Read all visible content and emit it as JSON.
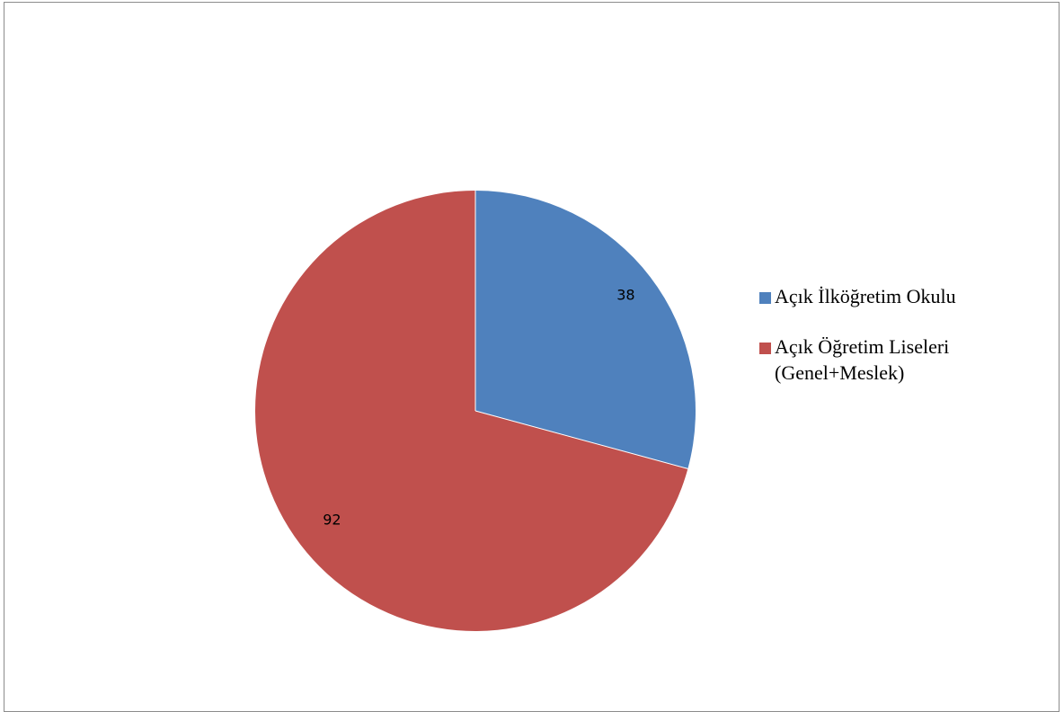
{
  "chart_data": {
    "type": "pie",
    "title": "",
    "slices": [
      {
        "label": "Açık İlköğretim Okulu",
        "value": 38,
        "color": "#4F81BD"
      },
      {
        "label": "Açık Öğretim Liseleri (Genel+Meslek)",
        "value": 92,
        "color": "#C0504D"
      }
    ],
    "start_angle": "top",
    "direction": "clockwise",
    "data_labels": [
      "38",
      "92"
    ],
    "legend_position": "right"
  }
}
